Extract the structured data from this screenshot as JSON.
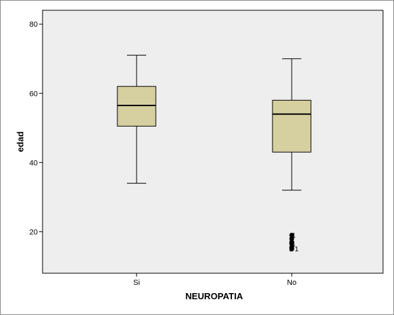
{
  "chart_data": {
    "type": "boxplot",
    "title": "",
    "xlabel": "NEUROPATIA",
    "ylabel": "edad",
    "ylim": [
      8,
      84
    ],
    "y_ticks": [
      20,
      40,
      60,
      80
    ],
    "grid": false,
    "colors": {
      "plot_background": "#eeeeee",
      "box_fill": "#d6d0a0",
      "line": "#000000"
    },
    "categories": [
      "Si",
      "No"
    ],
    "boxes": [
      {
        "category": "Si",
        "min": 34,
        "q1": 50.5,
        "median": 56.5,
        "q3": 62,
        "max": 71,
        "outliers": []
      },
      {
        "category": "No",
        "min": 32,
        "q1": 43,
        "median": 54,
        "q3": 58,
        "max": 70,
        "outliers": [
          {
            "value": 19,
            "label": "1"
          },
          {
            "value": 18,
            "label": ""
          },
          {
            "value": 17,
            "label": ""
          },
          {
            "value": 16.5,
            "label": "1"
          },
          {
            "value": 15.5,
            "label": ""
          },
          {
            "value": 15,
            "label": "1 1"
          }
        ]
      }
    ]
  }
}
